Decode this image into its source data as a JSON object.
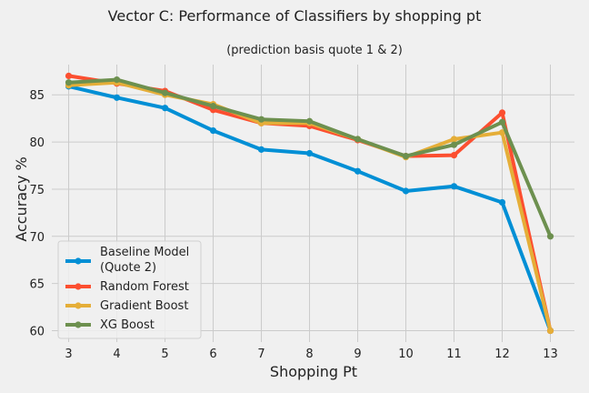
{
  "chart_data": {
    "type": "line",
    "title": "Vector C: Performance of Classifiers by shopping pt",
    "subtitle": "(prediction basis quote 1 & 2)",
    "xlabel": "Shopping Pt",
    "ylabel": "Accuracy %",
    "x": [
      3,
      4,
      5,
      6,
      7,
      8,
      9,
      10,
      11,
      12,
      13
    ],
    "xlim": [
      2.65,
      13.5
    ],
    "ylim": [
      58.8,
      88.2
    ],
    "xticks": [
      "3",
      "4",
      "5",
      "6",
      "7",
      "8",
      "9",
      "10",
      "11",
      "12",
      "13"
    ],
    "yticks": [
      60,
      65,
      70,
      75,
      80,
      85
    ],
    "grid": true,
    "legend_position": "lower-left",
    "background": "#f0f0f0",
    "grid_color": "#cbcbcb",
    "series": [
      {
        "name_lines": [
          "Baseline Model",
          "(Quote 2)"
        ],
        "color": "#008fd5",
        "values": [
          85.9,
          84.7,
          83.6,
          81.2,
          79.2,
          78.8,
          76.9,
          74.8,
          75.3,
          73.6,
          60.0
        ]
      },
      {
        "name": "Random Forest",
        "color": "#fc4f30",
        "values": [
          87.0,
          86.2,
          85.4,
          83.4,
          82.0,
          81.7,
          80.2,
          78.5,
          78.6,
          83.1,
          60.0
        ]
      },
      {
        "name": "Gradient Boost",
        "color": "#e5ae38",
        "values": [
          86.0,
          86.3,
          85.0,
          84.0,
          82.0,
          82.0,
          80.3,
          78.4,
          80.3,
          81.0,
          60.0
        ]
      },
      {
        "name": "XG Boost",
        "color": "#6d904f",
        "values": [
          86.3,
          86.6,
          85.2,
          83.8,
          82.4,
          82.2,
          80.3,
          78.5,
          79.7,
          82.1,
          70.0
        ]
      }
    ]
  }
}
